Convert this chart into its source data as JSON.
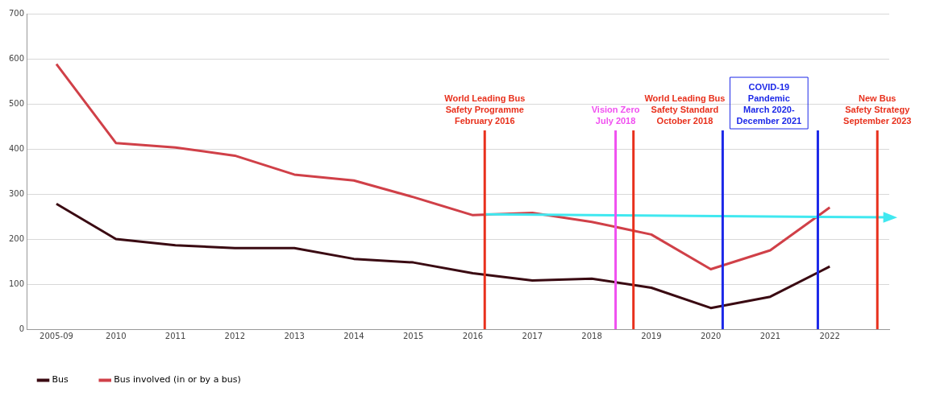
{
  "chart_data": {
    "type": "line",
    "x": [
      2009,
      2010,
      2011,
      2012,
      2013,
      2014,
      2015,
      2016,
      2017,
      2018,
      2019,
      2020,
      2021,
      2022
    ],
    "series": [
      {
        "name": "Bus",
        "color": "#3a0a12",
        "values": [
          278,
          200,
          186,
          180,
          180,
          156,
          148,
          124,
          108,
          112,
          92,
          47,
          72,
          139
        ]
      },
      {
        "name": "Bus involved (in or by a bus)",
        "color": "#d04048",
        "values": [
          588,
          413,
          403,
          385,
          343,
          330,
          293,
          253,
          258,
          238,
          210,
          133,
          175,
          270
        ]
      },
      {
        "type": "line",
        "color": "#40e8f0",
        "x": [
          2016.2,
          2023
        ],
        "values": [
          255,
          248
        ]
      }
    ],
    "xlim": [
      2008.5,
      2023
    ],
    "xticks": [
      {
        "value": 2009,
        "label": "2005-09"
      },
      2010,
      2011,
      2012,
      2013,
      2014,
      2015,
      2016,
      2017,
      2018,
      2019,
      2020,
      2021,
      2022
    ],
    "ylim": [
      0,
      700
    ],
    "yticks": [
      0,
      100,
      200,
      300,
      400,
      500,
      600,
      700
    ],
    "grid": "y",
    "legend": "bottom",
    "line_style": "solid",
    "ref_lines": [
      {
        "axis": "x",
        "value": 2016.2,
        "label": "World Leading Bus\nSafety Programme\nFebruary 2016",
        "color": "#e8301c"
      },
      {
        "axis": "x",
        "value": 2018.4,
        "label": "Vision Zero\nJuly 2018",
        "color": "#f050f0"
      },
      {
        "axis": "x",
        "value": 2018.7,
        "label": "World Leading Bus\nSafety Standard\nOctober 2018",
        "color": "#e8301c"
      },
      {
        "axis": "x",
        "value": 2020.2,
        "label": "COVID-19\nPandemic\nMarch 2020-\nDecember 2021",
        "color": "#1c28e8"
      },
      {
        "axis": "x",
        "value": 2021.8,
        "color": "#1c28e8"
      },
      {
        "axis": "x",
        "value": 2022.8,
        "label": "New Bus\nSafety Strategy\nSeptember 2023",
        "color": "#e8301c"
      }
    ]
  }
}
